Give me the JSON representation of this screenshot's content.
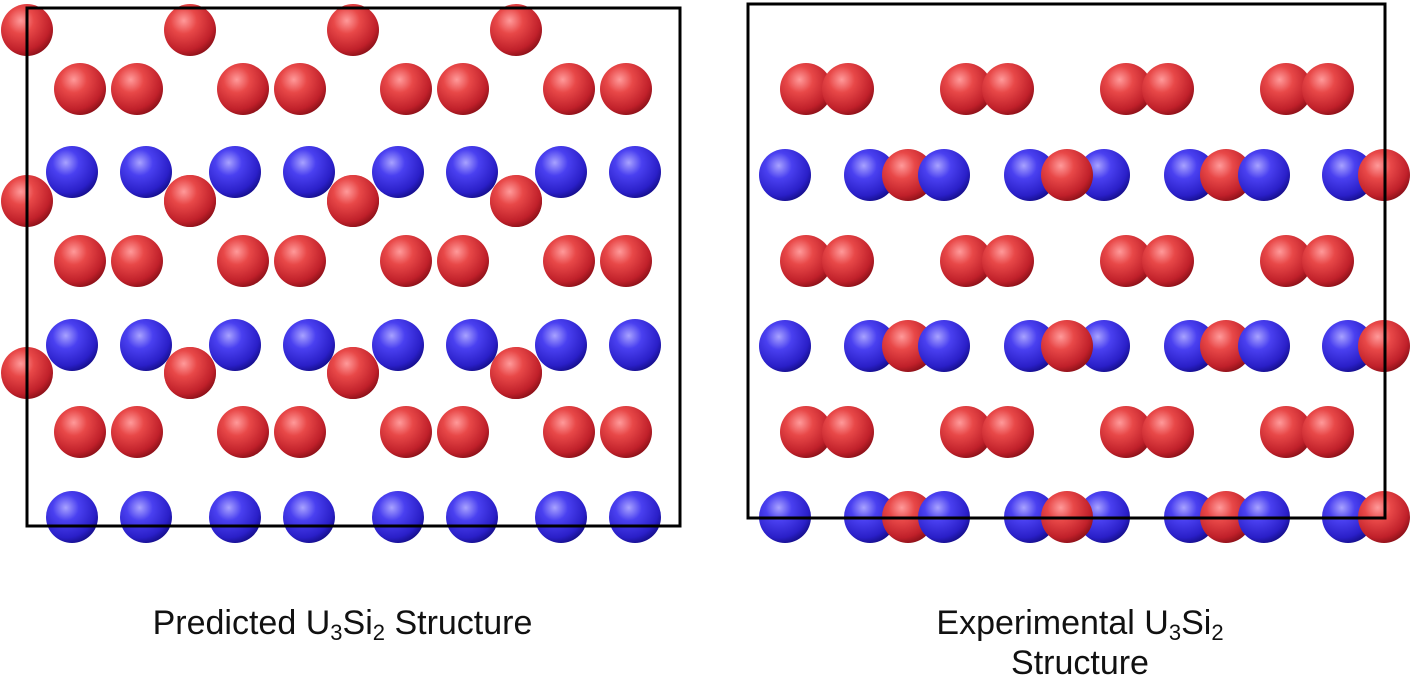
{
  "colors": {
    "uranium_atom": "#c0202a",
    "silicon_atom": "#2a1fc8",
    "cell_outline": "#000000"
  },
  "panels": [
    {
      "name": "predicted",
      "caption_text": "Predicted ",
      "formula_U": "U",
      "formula_U_sub": "3",
      "formula_Si": "Si",
      "formula_Si_sub": "2",
      "caption_suffix": " Structure"
    },
    {
      "name": "experimental",
      "caption_text": "Experimental ",
      "formula_U": "U",
      "formula_U_sub": "3",
      "formula_Si": "Si",
      "formula_Si_sub": "2",
      "caption_suffix": "Structure"
    }
  ]
}
